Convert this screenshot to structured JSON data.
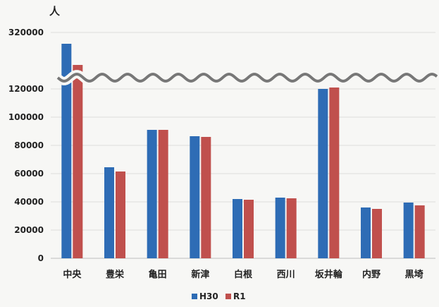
{
  "chart_data": {
    "type": "bar",
    "y_unit": "人",
    "categories": [
      "中央",
      "豊栄",
      "亀田",
      "新津",
      "白根",
      "西川",
      "坂井輪",
      "内野",
      "黒埼"
    ],
    "series": [
      {
        "name": "H30",
        "color": "#2e6cb5",
        "values": [
          null,
          64500,
          91000,
          86500,
          42000,
          43000,
          120000,
          36000,
          39500
        ]
      },
      {
        "name": "R1",
        "color": "#c0504d",
        "values": [
          null,
          61500,
          91000,
          86000,
          41500,
          42500,
          121000,
          35000,
          37500
        ]
      }
    ],
    "upper_segment": {
      "ticks": [
        "320000"
      ],
      "H30_top_above_break": true,
      "R1_top_above_break": true
    },
    "axis_break": true,
    "ylim": [
      0,
      130000
    ],
    "yticks": [
      "0",
      "20000",
      "40000",
      "60000",
      "80000",
      "100000",
      "120000"
    ],
    "grid": true,
    "legend_position": "bottom"
  }
}
